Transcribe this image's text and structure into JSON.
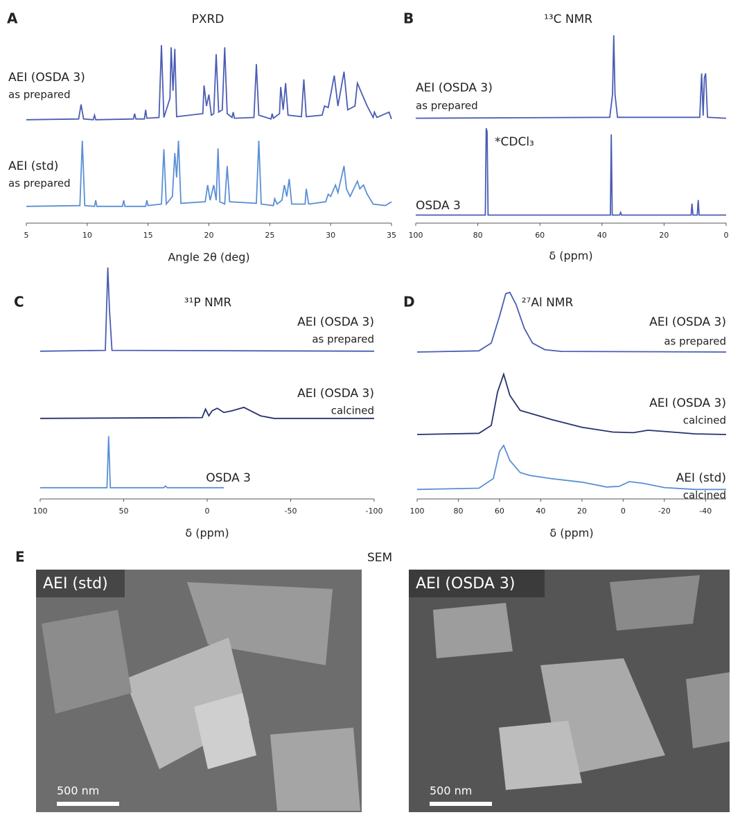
{
  "chart_data": [
    {
      "type": "line",
      "panel": "A",
      "title": "PXRD",
      "x_label": "Angle 2θ (deg)",
      "xlim": [
        5,
        35
      ],
      "xticks": [
        5,
        10,
        15,
        20,
        25,
        30,
        35
      ],
      "ylim": [
        0,
        1
      ],
      "series": [
        {
          "name": "AEI (OSDA 3)",
          "note": "as prepared",
          "color": "#4a5cb3",
          "x": [
            5,
            9.3,
            9.5,
            9.7,
            10.5,
            10.6,
            10.7,
            13.8,
            13.9,
            14.0,
            14.7,
            14.8,
            14.9,
            15.9,
            16.1,
            16.3,
            16.8,
            16.9,
            17.05,
            17.2,
            17.35,
            19.5,
            19.6,
            19.8,
            20.0,
            20.2,
            20.4,
            20.6,
            20.8,
            21.1,
            21.3,
            21.5,
            21.9,
            22.0,
            22.1,
            23.7,
            23.9,
            24.1,
            25.1,
            25.2,
            25.3,
            25.8,
            25.9,
            26.1,
            26.3,
            26.5,
            27.6,
            27.8,
            28.0,
            29.3,
            29.5,
            29.8,
            30.3,
            30.6,
            31.1,
            31.4,
            32.0,
            32.2,
            32.6,
            33.0,
            33.5,
            33.6,
            33.8,
            34.8,
            35
          ],
          "values": [
            0.02,
            0.03,
            0.22,
            0.03,
            0.02,
            0.08,
            0.02,
            0.03,
            0.1,
            0.03,
            0.03,
            0.15,
            0.04,
            0.05,
            1.0,
            0.05,
            0.3,
            0.97,
            0.4,
            0.95,
            0.06,
            0.1,
            0.47,
            0.2,
            0.35,
            0.08,
            0.1,
            0.88,
            0.12,
            0.15,
            0.97,
            0.1,
            0.05,
            0.12,
            0.04,
            0.05,
            0.75,
            0.08,
            0.03,
            0.1,
            0.04,
            0.1,
            0.45,
            0.15,
            0.5,
            0.08,
            0.06,
            0.55,
            0.06,
            0.08,
            0.2,
            0.18,
            0.6,
            0.2,
            0.65,
            0.15,
            0.2,
            0.5,
            0.35,
            0.2,
            0.05,
            0.12,
            0.05,
            0.12,
            0.03
          ]
        },
        {
          "name": "AEI (std)",
          "note": "as prepared",
          "color": "#5a8fd4",
          "x": [
            5,
            9.4,
            9.6,
            9.8,
            10.6,
            10.7,
            10.8,
            12.9,
            13.0,
            13.1,
            14.8,
            14.9,
            15.0,
            16.1,
            16.3,
            16.5,
            17.0,
            17.2,
            17.35,
            17.5,
            17.7,
            19.7,
            19.9,
            20.1,
            20.4,
            20.6,
            20.75,
            20.9,
            21.3,
            21.5,
            21.7,
            23.9,
            24.1,
            24.3,
            25.3,
            25.4,
            25.6,
            26.0,
            26.2,
            26.4,
            26.6,
            26.8,
            27.9,
            28.0,
            28.2,
            29.6,
            29.8,
            30.0,
            30.4,
            30.6,
            31.1,
            31.3,
            31.6,
            32.2,
            32.4,
            32.7,
            33.0,
            33.5,
            34.5,
            35
          ],
          "values": [
            0.02,
            0.03,
            0.88,
            0.03,
            0.02,
            0.1,
            0.02,
            0.02,
            0.1,
            0.02,
            0.02,
            0.1,
            0.03,
            0.05,
            0.77,
            0.05,
            0.15,
            0.72,
            0.4,
            0.88,
            0.06,
            0.08,
            0.3,
            0.1,
            0.3,
            0.1,
            0.78,
            0.08,
            0.05,
            0.55,
            0.08,
            0.06,
            0.88,
            0.05,
            0.03,
            0.12,
            0.05,
            0.1,
            0.3,
            0.15,
            0.38,
            0.05,
            0.05,
            0.25,
            0.05,
            0.08,
            0.18,
            0.15,
            0.3,
            0.2,
            0.55,
            0.25,
            0.15,
            0.35,
            0.25,
            0.3,
            0.18,
            0.05,
            0.03,
            0.08
          ]
        }
      ]
    },
    {
      "type": "line",
      "panel": "B",
      "title": "¹³C NMR",
      "x_label": "δ (ppm)",
      "xlim": [
        100,
        0
      ],
      "xticks": [
        100,
        80,
        60,
        40,
        20,
        0
      ],
      "ylim": [
        0,
        1
      ],
      "annotation": "*CDCl₃",
      "series": [
        {
          "name": "AEI (OSDA 3)",
          "note": "as prepared",
          "color": "#4a5cb3",
          "x": [
            100,
            37.5,
            36.6,
            36.2,
            35.8,
            35.0,
            8.5,
            7.9,
            7.4,
            7.0,
            6.6,
            6.0,
            0
          ],
          "values": [
            0.02,
            0.03,
            0.3,
            1.0,
            0.3,
            0.03,
            0.03,
            0.55,
            0.05,
            0.5,
            0.55,
            0.03,
            0.02
          ]
        },
        {
          "name": "OSDA 3",
          "color": "#4a5cb3",
          "x": [
            100,
            77.6,
            77.3,
            77.0,
            76.7,
            37.3,
            37.0,
            36.7,
            34.3,
            34.0,
            33.7,
            11.3,
            11.0,
            10.7,
            9.3,
            9.0,
            8.7,
            0
          ],
          "values": [
            0.02,
            0.02,
            1.0,
            0.96,
            0.02,
            0.02,
            0.93,
            0.02,
            0.02,
            0.05,
            0.02,
            0.02,
            0.15,
            0.02,
            0.02,
            0.19,
            0.02,
            0.02
          ]
        }
      ]
    },
    {
      "type": "line",
      "panel": "C",
      "title": "³¹P NMR",
      "x_label": "δ (ppm)",
      "xlim": [
        100,
        -100
      ],
      "xticks": [
        100,
        50,
        0,
        -50,
        -100
      ],
      "ylim": [
        0,
        1
      ],
      "series": [
        {
          "name": "AEI (OSDA 3)",
          "note": "as prepared",
          "color": "#4a5cb3",
          "x": [
            100,
            61,
            59.5,
            58.5,
            57,
            -100
          ],
          "values": [
            0.01,
            0.02,
            1.0,
            0.5,
            0.02,
            0.01
          ]
        },
        {
          "name": "AEI (OSDA 3)",
          "note": "calcined",
          "color": "#26306e",
          "x": [
            100,
            3,
            1,
            -1,
            -3,
            -6,
            -10,
            -15,
            -22,
            -26,
            -32,
            -40,
            -100
          ],
          "values": [
            0.01,
            0.02,
            0.12,
            0.04,
            0.1,
            0.13,
            0.08,
            0.1,
            0.14,
            0.1,
            0.04,
            0.01,
            0.01
          ]
        },
        {
          "name": "OSDA 3",
          "color": "#5a8fd4",
          "x": [
            100,
            60,
            59,
            58,
            26,
            25,
            24,
            -10
          ],
          "values": [
            0.01,
            0.01,
            0.62,
            0.01,
            0.01,
            0.03,
            0.01,
            0.01
          ]
        }
      ]
    },
    {
      "type": "line",
      "panel": "D",
      "title": "²⁷Al NMR",
      "x_label": "δ (ppm)",
      "xlim": [
        100,
        -50
      ],
      "xticks": [
        100,
        80,
        60,
        40,
        20,
        0,
        -20,
        -40
      ],
      "ylim": [
        0,
        1
      ],
      "series": [
        {
          "name": "AEI (OSDA 3)",
          "note": "as prepared",
          "color": "#4a5cb3",
          "x": [
            100,
            70,
            64,
            60,
            57,
            55,
            52,
            48,
            44,
            38,
            30,
            -50
          ],
          "values": [
            0.0,
            0.02,
            0.15,
            0.6,
            0.98,
            1.0,
            0.8,
            0.4,
            0.15,
            0.04,
            0.01,
            0.0
          ]
        },
        {
          "name": "AEI (OSDA 3)",
          "note": "calcined",
          "color": "#26306e",
          "x": [
            100,
            70,
            64,
            61,
            58,
            55,
            50,
            45,
            35,
            20,
            5,
            -5,
            -12,
            -20,
            -35,
            -50
          ],
          "values": [
            0.0,
            0.02,
            0.15,
            0.7,
            1.0,
            0.65,
            0.4,
            0.35,
            0.25,
            0.12,
            0.04,
            0.03,
            0.07,
            0.05,
            0.01,
            0.0
          ]
        },
        {
          "name": "AEI (std)",
          "note": "calcined",
          "color": "#5a8fd4",
          "x": [
            100,
            70,
            63,
            60,
            58,
            55,
            50,
            45,
            35,
            20,
            8,
            2,
            -3,
            -10,
            -20,
            -35,
            -50
          ],
          "values": [
            0.02,
            0.04,
            0.2,
            0.65,
            0.75,
            0.5,
            0.3,
            0.25,
            0.2,
            0.14,
            0.06,
            0.07,
            0.15,
            0.12,
            0.05,
            0.02,
            0.02
          ]
        }
      ]
    }
  ],
  "sem": {
    "panel": "E",
    "title": "SEM",
    "images": [
      {
        "label": "AEI (std)",
        "scale_bar": "500 nm"
      },
      {
        "label": "AEI (OSDA 3)",
        "scale_bar": "500 nm"
      }
    ]
  }
}
